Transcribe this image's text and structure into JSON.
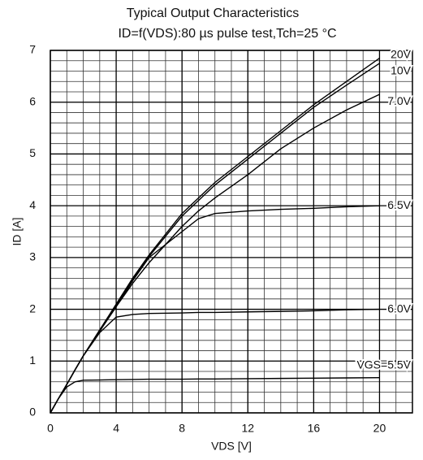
{
  "chart_data": {
    "type": "line",
    "title": "Typical Output Characteristics",
    "subtitle": "ID=f(VDS):80 µs pulse test,Tch=25 °C",
    "x_label": "VDS [V]",
    "y_label": "ID [A]",
    "x": [
      0,
      0.5,
      1,
      1.5,
      2,
      3,
      4,
      5,
      6,
      8,
      9,
      10,
      12,
      14,
      16,
      18,
      20
    ],
    "series": [
      {
        "name": "20V",
        "color": "#000000",
        "values": [
          0,
          0.28,
          0.55,
          0.83,
          1.1,
          1.6,
          2.1,
          2.6,
          3.05,
          3.85,
          4.15,
          4.45,
          4.95,
          5.45,
          5.95,
          6.4,
          6.85
        ]
      },
      {
        "name": "10V",
        "color": "#000000",
        "values": [
          0,
          0.28,
          0.55,
          0.83,
          1.1,
          1.6,
          2.08,
          2.57,
          3.02,
          3.8,
          4.1,
          4.4,
          4.9,
          5.4,
          5.9,
          6.33,
          6.75
        ]
      },
      {
        "name": "7.0V",
        "color": "#000000",
        "values": [
          0,
          0.28,
          0.55,
          0.83,
          1.1,
          1.58,
          2.05,
          2.5,
          2.9,
          3.6,
          3.9,
          4.15,
          4.6,
          5.1,
          5.5,
          5.85,
          6.15
        ]
      },
      {
        "name": "6.5V",
        "color": "#000000",
        "values": [
          0,
          0.28,
          0.55,
          0.83,
          1.1,
          1.58,
          2.05,
          2.55,
          3.0,
          3.5,
          3.75,
          3.85,
          3.9,
          3.93,
          3.95,
          3.98,
          4.0
        ]
      },
      {
        "name": "6.0V",
        "color": "#000000",
        "values": [
          0,
          0.28,
          0.55,
          0.83,
          1.1,
          1.55,
          1.85,
          1.9,
          1.92,
          1.93,
          1.94,
          1.94,
          1.95,
          1.96,
          1.97,
          1.99,
          2.0
        ]
      },
      {
        "name": "VGS=5.5V",
        "color": "#000000",
        "values": [
          0,
          0.28,
          0.5,
          0.6,
          0.63,
          0.635,
          0.64,
          0.645,
          0.65,
          0.65,
          0.655,
          0.655,
          0.66,
          0.665,
          0.67,
          0.675,
          0.68
        ]
      }
    ],
    "xlim": [
      0,
      22
    ],
    "ylim": [
      0,
      7
    ],
    "xticks": [
      0,
      4,
      8,
      12,
      16,
      20
    ],
    "yticks": [
      0,
      1,
      2,
      3,
      4,
      5,
      6,
      7
    ],
    "grid": true,
    "minor_grid_step": {
      "x": 1,
      "y": 0.2
    }
  }
}
